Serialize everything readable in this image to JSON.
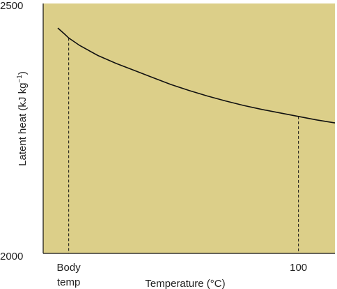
{
  "chart_data": {
    "type": "line",
    "title": "",
    "xlabel": "Temperature (°C)",
    "ylabel": "Latent heat (kJ kg",
    "ylabel_sup": "−1",
    "ylabel_close": ")",
    "ylim": [
      2000,
      2500
    ],
    "xlim": [
      30,
      110
    ],
    "y_tick_labels": [
      "2500",
      "2000"
    ],
    "x_tick_labels": [
      {
        "lines": [
          "Body",
          "temp"
        ],
        "x": 37
      },
      {
        "lines": [
          "100"
        ],
        "x": 100
      }
    ],
    "series": [
      {
        "x": [
          34,
          36,
          37,
          40,
          45,
          50,
          55,
          60,
          65,
          70,
          75,
          80,
          85,
          90,
          95,
          100,
          105,
          110
        ],
        "y": [
          2451,
          2438,
          2431,
          2416,
          2396,
          2380,
          2366,
          2352,
          2338,
          2326,
          2315,
          2305,
          2296,
          2288,
          2281,
          2274,
          2267,
          2261
        ]
      }
    ],
    "markers": [
      {
        "x": 37,
        "y": 2431
      },
      {
        "x": 100,
        "y": 2274
      }
    ],
    "colors": {
      "plot_background": "#dccf89",
      "line": "#111111",
      "frame": "#111111"
    },
    "grid": false,
    "legend": "none"
  }
}
